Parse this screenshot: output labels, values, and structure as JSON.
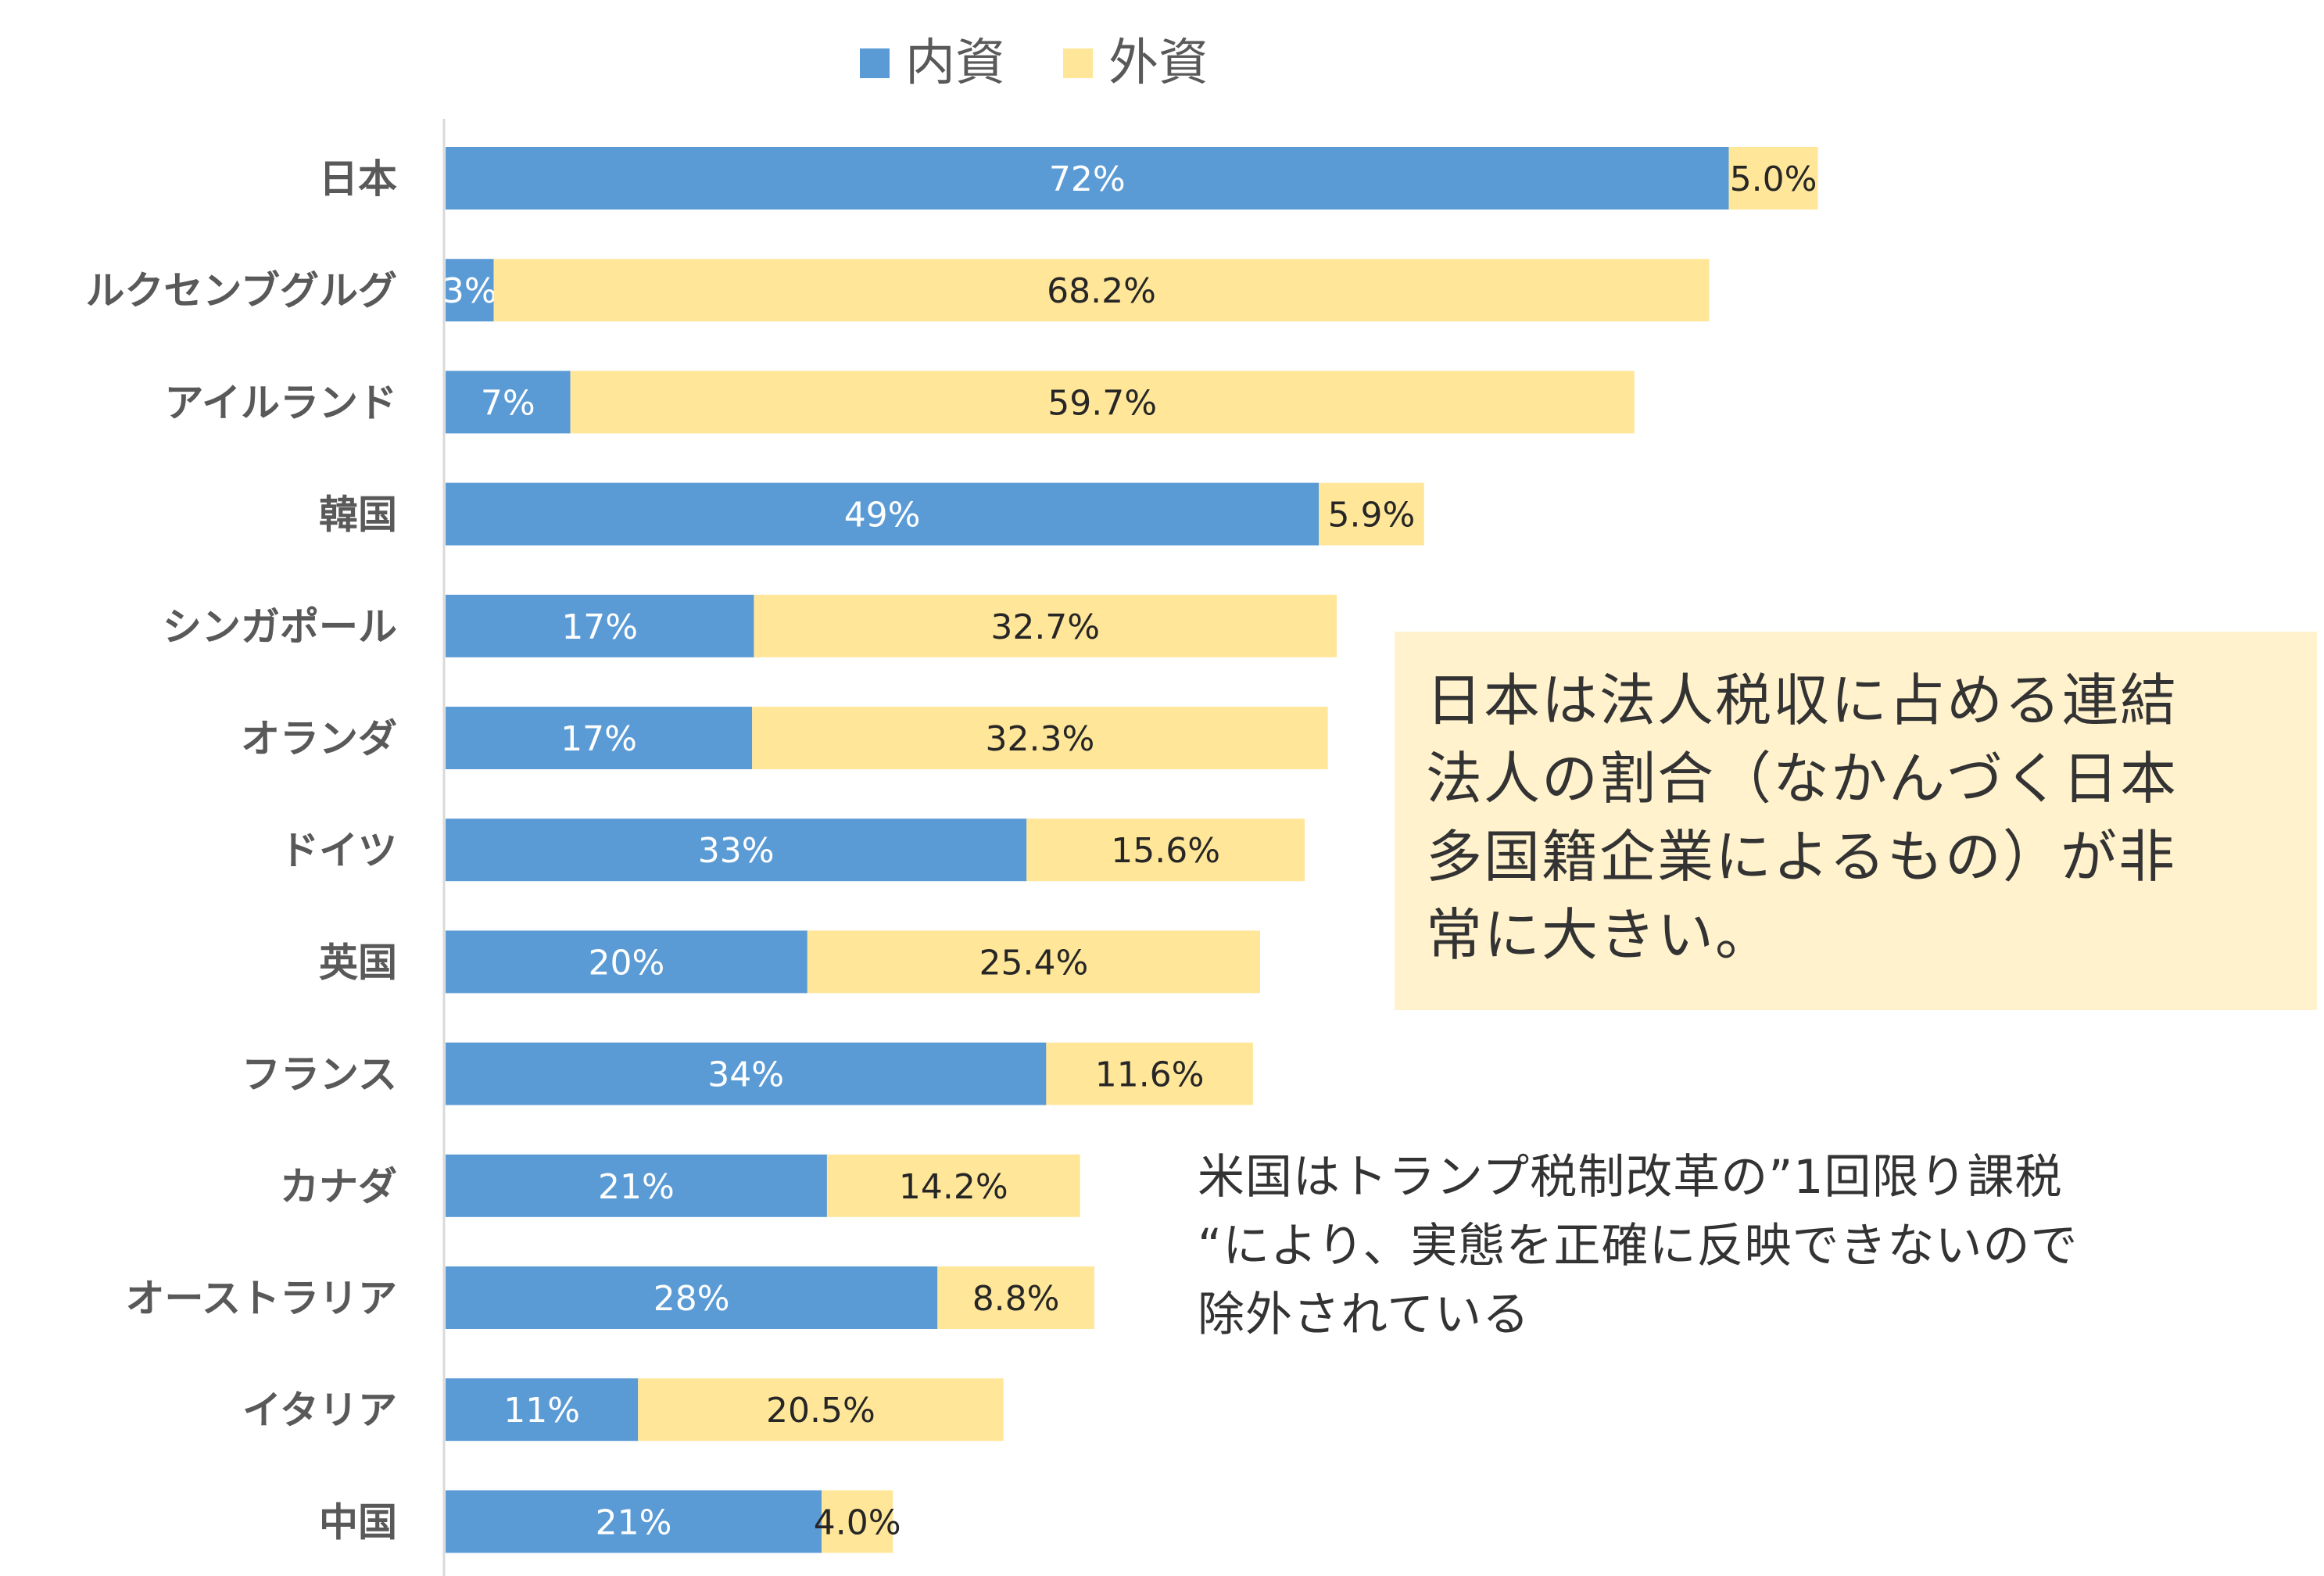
{
  "chart_data": {
    "type": "bar",
    "orientation": "horizontal",
    "stacked": true,
    "categories": [
      "日本",
      "ルクセンブグルグ",
      "アイルランド",
      "韓国",
      "シンガポール",
      "オランダ",
      "ドイツ",
      "英国",
      "フランス",
      "カナダ",
      "オーストラリア",
      "イタリア",
      "中国"
    ],
    "series": [
      {
        "name": "内資",
        "color": "#5B9BD5",
        "values": [
          72,
          2.7,
          7,
          49,
          17.3,
          17.2,
          32.6,
          20.3,
          33.7,
          21.4,
          27.6,
          10.8,
          21.1
        ],
        "labels": [
          "72%",
          "3%",
          "7%",
          "49%",
          "17%",
          "17%",
          "33%",
          "20%",
          "34%",
          "21%",
          "28%",
          "11%",
          "21%"
        ]
      },
      {
        "name": "外資",
        "color": "#FFE699",
        "values": [
          5.0,
          68.2,
          59.7,
          5.9,
          32.7,
          32.3,
          15.6,
          25.4,
          11.6,
          14.2,
          8.8,
          20.5,
          4.0
        ],
        "labels": [
          "5.0%",
          "68.2%",
          "59.7%",
          "5.9%",
          "32.7%",
          "32.3%",
          "15.6%",
          "25.4%",
          "11.6%",
          "14.2%",
          "8.8%",
          "20.5%",
          "4.0%"
        ]
      }
    ],
    "legend_position": "top",
    "grid": false
  },
  "annotations": {
    "japan_note": "日本は法人税収に占める連結\n法人の割合（なかんづく日本\n多国籍企業によるもの）が非\n常に大きい。",
    "us_note": "米国はトランプ税制改革の”1回限り課税\n“により、実態を正確に反映できないので\n除外されている"
  }
}
